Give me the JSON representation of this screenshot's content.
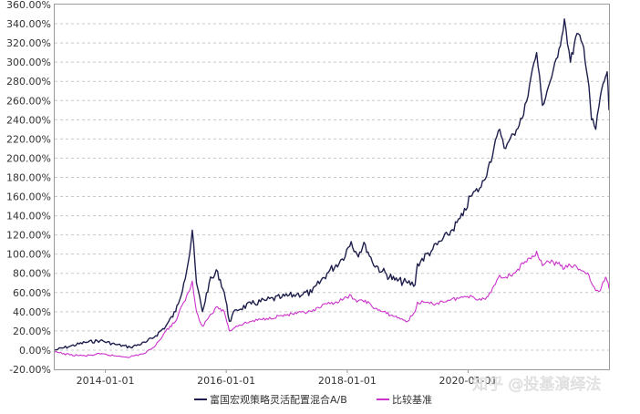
{
  "chart_data": {
    "type": "line",
    "title": "",
    "xlabel": "",
    "ylabel": "",
    "x_ticks": [
      "2014-01-01",
      "2016-01-01",
      "2018-01-01",
      "2020-01-01"
    ],
    "x_range": [
      "2013-03-01",
      "2022-05-01"
    ],
    "y_ticks": [
      "360.00%",
      "340.00%",
      "320.00%",
      "300.00%",
      "280.00%",
      "260.00%",
      "240.00%",
      "220.00%",
      "200.00%",
      "180.00%",
      "160.00%",
      "140.00%",
      "120.00%",
      "100.00%",
      "80.00%",
      "60.00%",
      "40.00%",
      "20.00%",
      "0.00%",
      "-20.00%"
    ],
    "ylim": [
      -20,
      360
    ],
    "grid": "horizontal dashed",
    "legend_position": "bottom",
    "series": [
      {
        "name": "富国宏观策略灵活配置混合A/B",
        "color": "#1f1f4d",
        "points": [
          [
            "2013-03-01",
            0
          ],
          [
            "2013-06-01",
            4
          ],
          [
            "2013-09-01",
            8
          ],
          [
            "2013-12-01",
            10
          ],
          [
            "2014-03-01",
            6
          ],
          [
            "2014-06-01",
            3
          ],
          [
            "2014-09-01",
            8
          ],
          [
            "2014-11-01",
            15
          ],
          [
            "2015-01-01",
            25
          ],
          [
            "2015-03-01",
            40
          ],
          [
            "2015-04-20",
            70
          ],
          [
            "2015-05-25",
            100
          ],
          [
            "2015-06-10",
            125
          ],
          [
            "2015-07-05",
            70
          ],
          [
            "2015-08-10",
            40
          ],
          [
            "2015-09-20",
            70
          ],
          [
            "2015-11-10",
            82
          ],
          [
            "2015-12-20",
            60
          ],
          [
            "2016-01-20",
            30
          ],
          [
            "2016-03-01",
            42
          ],
          [
            "2016-06-01",
            48
          ],
          [
            "2016-09-01",
            52
          ],
          [
            "2016-12-01",
            55
          ],
          [
            "2017-03-01",
            58
          ],
          [
            "2017-06-01",
            60
          ],
          [
            "2017-09-01",
            80
          ],
          [
            "2017-12-01",
            95
          ],
          [
            "2018-01-25",
            113
          ],
          [
            "2018-03-01",
            100
          ],
          [
            "2018-04-20",
            110
          ],
          [
            "2018-06-01",
            92
          ],
          [
            "2018-08-01",
            82
          ],
          [
            "2018-10-15",
            73
          ],
          [
            "2018-12-31",
            70
          ],
          [
            "2019-02-15",
            68
          ],
          [
            "2019-03-01",
            90
          ],
          [
            "2019-06-01",
            105
          ],
          [
            "2019-09-01",
            120
          ],
          [
            "2019-12-01",
            140
          ],
          [
            "2020-01-15",
            160
          ],
          [
            "2020-03-20",
            170
          ],
          [
            "2020-05-01",
            190
          ],
          [
            "2020-07-10",
            230
          ],
          [
            "2020-08-15",
            210
          ],
          [
            "2020-10-01",
            225
          ],
          [
            "2020-12-01",
            245
          ],
          [
            "2021-01-15",
            285
          ],
          [
            "2021-02-18",
            310
          ],
          [
            "2021-03-25",
            255
          ],
          [
            "2021-05-01",
            275
          ],
          [
            "2021-06-25",
            305
          ],
          [
            "2021-08-05",
            345
          ],
          [
            "2021-09-10",
            300
          ],
          [
            "2021-10-20",
            330
          ],
          [
            "2021-11-30",
            315
          ],
          [
            "2021-12-31",
            275
          ],
          [
            "2022-01-15",
            240
          ],
          [
            "2022-02-10",
            230
          ],
          [
            "2022-03-10",
            265
          ],
          [
            "2022-04-10",
            285
          ],
          [
            "2022-04-20",
            290
          ],
          [
            "2022-05-01",
            250
          ]
        ]
      },
      {
        "name": "比较基准",
        "color": "#cc33cc",
        "points": [
          [
            "2013-03-01",
            -2
          ],
          [
            "2013-06-01",
            -5
          ],
          [
            "2013-09-01",
            -6
          ],
          [
            "2013-12-01",
            -4
          ],
          [
            "2014-03-01",
            -6
          ],
          [
            "2014-06-01",
            -7
          ],
          [
            "2014-09-01",
            -3
          ],
          [
            "2014-11-01",
            5
          ],
          [
            "2015-01-01",
            20
          ],
          [
            "2015-03-01",
            30
          ],
          [
            "2015-04-20",
            50
          ],
          [
            "2015-05-25",
            62
          ],
          [
            "2015-06-10",
            72
          ],
          [
            "2015-07-05",
            40
          ],
          [
            "2015-08-10",
            25
          ],
          [
            "2015-09-20",
            35
          ],
          [
            "2015-11-10",
            45
          ],
          [
            "2015-12-20",
            40
          ],
          [
            "2016-01-20",
            20
          ],
          [
            "2016-03-01",
            25
          ],
          [
            "2016-06-01",
            30
          ],
          [
            "2016-09-01",
            33
          ],
          [
            "2016-12-01",
            36
          ],
          [
            "2017-03-01",
            38
          ],
          [
            "2017-06-01",
            40
          ],
          [
            "2017-09-01",
            48
          ],
          [
            "2017-12-01",
            52
          ],
          [
            "2018-01-25",
            57
          ],
          [
            "2018-03-01",
            50
          ],
          [
            "2018-04-20",
            52
          ],
          [
            "2018-06-01",
            45
          ],
          [
            "2018-08-01",
            40
          ],
          [
            "2018-10-15",
            35
          ],
          [
            "2018-12-31",
            30
          ],
          [
            "2019-02-15",
            40
          ],
          [
            "2019-03-01",
            50
          ],
          [
            "2019-06-01",
            48
          ],
          [
            "2019-09-01",
            52
          ],
          [
            "2019-12-01",
            55
          ],
          [
            "2020-01-15",
            57
          ],
          [
            "2020-03-20",
            52
          ],
          [
            "2020-05-01",
            56
          ],
          [
            "2020-07-10",
            78
          ],
          [
            "2020-08-15",
            76
          ],
          [
            "2020-10-01",
            80
          ],
          [
            "2020-12-01",
            90
          ],
          [
            "2021-01-15",
            95
          ],
          [
            "2021-02-18",
            103
          ],
          [
            "2021-03-25",
            88
          ],
          [
            "2021-05-01",
            92
          ],
          [
            "2021-06-25",
            90
          ],
          [
            "2021-08-05",
            85
          ],
          [
            "2021-09-10",
            88
          ],
          [
            "2021-10-20",
            86
          ],
          [
            "2021-11-30",
            82
          ],
          [
            "2021-12-31",
            78
          ],
          [
            "2022-01-15",
            70
          ],
          [
            "2022-02-10",
            62
          ],
          [
            "2022-03-10",
            62
          ],
          [
            "2022-04-10",
            76
          ],
          [
            "2022-04-20",
            72
          ],
          [
            "2022-05-01",
            64
          ]
        ]
      }
    ]
  },
  "watermark": "知乎 @投基演绎法"
}
